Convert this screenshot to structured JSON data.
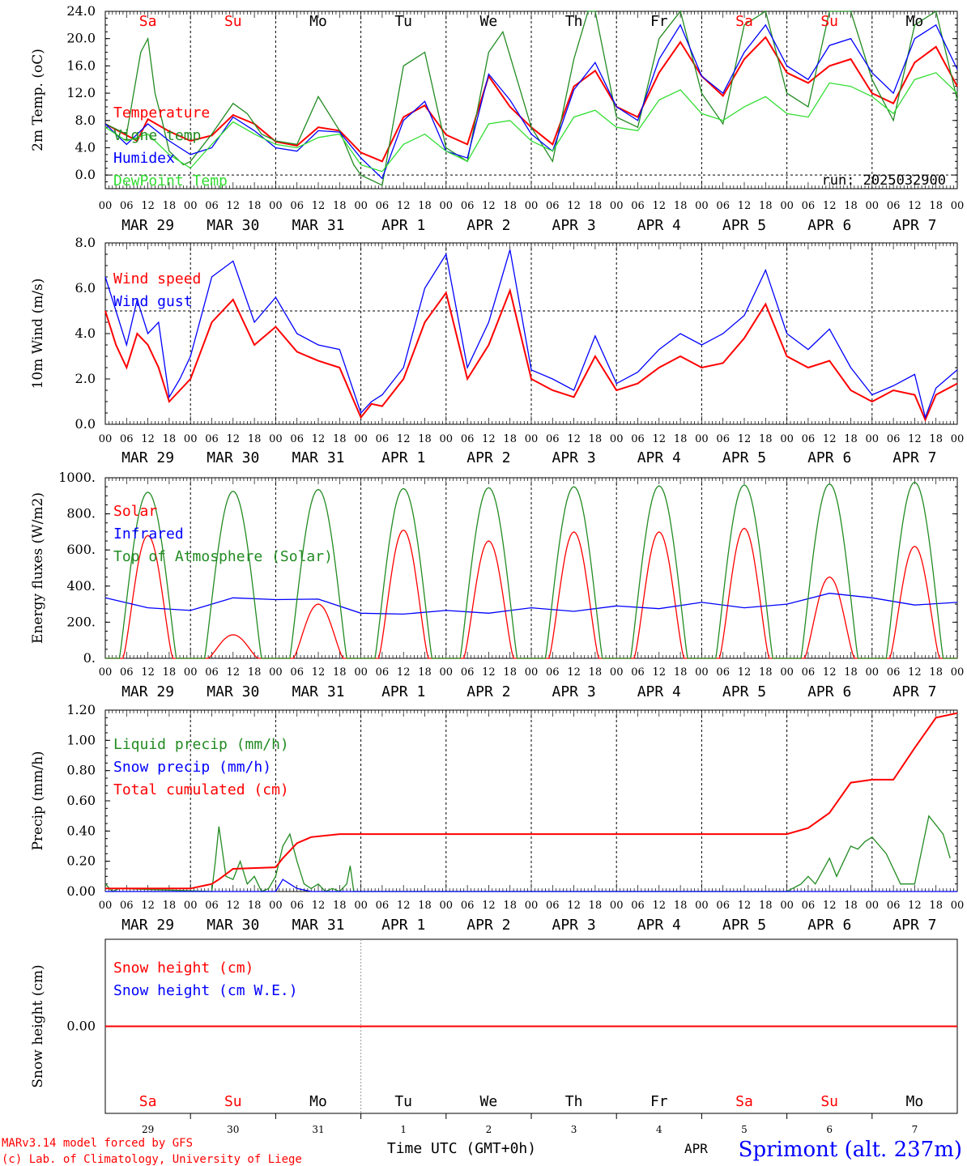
{
  "axis": {
    "hours": [
      "00",
      "06",
      "12",
      "18"
    ],
    "days": [
      {
        "dlabel": "MAR 29",
        "abbr": "Sa",
        "num": "29",
        "red": true
      },
      {
        "dlabel": "MAR 30",
        "abbr": "Su",
        "num": "30",
        "red": true
      },
      {
        "dlabel": "MAR 31",
        "abbr": "Mo",
        "num": "31",
        "red": false
      },
      {
        "dlabel": "APR  1",
        "abbr": "Tu",
        "num": "1",
        "red": false
      },
      {
        "dlabel": "APR  2",
        "abbr": "We",
        "num": "2",
        "red": false
      },
      {
        "dlabel": "APR  3",
        "abbr": "Th",
        "num": "3",
        "red": false
      },
      {
        "dlabel": "APR  4",
        "abbr": "Fr",
        "num": "4",
        "red": false
      },
      {
        "dlabel": "APR  5",
        "abbr": "Sa",
        "num": "5",
        "red": true
      },
      {
        "dlabel": "APR  6",
        "abbr": "Su",
        "num": "6",
        "red": true
      },
      {
        "dlabel": "APR  7",
        "abbr": "Mo",
        "num": "7",
        "red": false
      }
    ],
    "last_hour": "00",
    "xlabel": "Time UTC (GMT+0h)",
    "apr_fragment": "APR"
  },
  "footer": {
    "model_line": "MARv3.14 model forced by GFS",
    "lab_line": "(c) Lab. of Climatology, University of Liege",
    "station": "Sprimont (alt. 237m)"
  },
  "colors": {
    "red": "#ff0000",
    "green": "#228b22",
    "blue": "#0000ff",
    "lightgreen": "#33dd33"
  },
  "chart_data": [
    {
      "type": "line",
      "ylabel": "2m Temp. (oC)",
      "ylim": [
        -2,
        24
      ],
      "yticks": [
        "0.0",
        "4.0",
        "8.0",
        "12.0",
        "16.0",
        "20.0",
        "24.0"
      ],
      "yvals": [
        0,
        4,
        8,
        12,
        16,
        20,
        24
      ],
      "run_label": "run: 2025032900",
      "series": [
        {
          "name": "Temperature",
          "color": "red",
          "x": [
            0,
            9,
            12,
            18,
            24,
            30,
            36,
            42,
            48,
            54,
            60,
            66,
            72,
            78,
            84,
            90,
            96,
            102,
            108,
            114,
            120,
            126,
            132,
            138,
            144,
            150,
            156,
            162,
            168,
            174,
            180,
            186,
            192,
            198,
            204,
            210,
            216,
            222,
            228,
            234,
            240
          ],
          "values": [
            7.5,
            5.0,
            8.2,
            6.4,
            5.0,
            5.8,
            8.8,
            7.5,
            4.9,
            4.3,
            7.0,
            6.5,
            3.3,
            2.0,
            8.5,
            10.2,
            5.9,
            4.5,
            14.5,
            10.0,
            7.0,
            4.5,
            13.0,
            15.3,
            10.0,
            8.5,
            15.0,
            19.5,
            14.5,
            11.6,
            17.0,
            20.2,
            15.0,
            13.5,
            16.0,
            17.0,
            12.0,
            10.5,
            16.5,
            18.8,
            13.0
          ]
        },
        {
          "name": "Vigne temp",
          "color": "green",
          "x": [
            0,
            6,
            10,
            12,
            14,
            16,
            18,
            22,
            24,
            30,
            36,
            40,
            44,
            48,
            54,
            60,
            66,
            70,
            72,
            78,
            84,
            90,
            96,
            102,
            108,
            112,
            114,
            120,
            126,
            132,
            136,
            138,
            144,
            150,
            156,
            162,
            168,
            174,
            180,
            186,
            192,
            198,
            204,
            210,
            216,
            222,
            228,
            234,
            240
          ],
          "values": [
            7.5,
            6.0,
            18.0,
            20.0,
            12.0,
            8.0,
            3.5,
            1.5,
            2.0,
            6.0,
            10.5,
            9.0,
            6.0,
            5.0,
            4.5,
            11.5,
            6.5,
            1.5,
            0,
            -1.5,
            16.0,
            18.0,
            4.0,
            2.0,
            18.0,
            21.0,
            17.5,
            7.0,
            2.0,
            17.0,
            26.0,
            24.0,
            8.5,
            7.0,
            20.0,
            27.0,
            12.0,
            7.5,
            22.0,
            26.0,
            12.0,
            10.0,
            24.0,
            25.0,
            14.0,
            8.0,
            22.0,
            26.0,
            11.0
          ]
        },
        {
          "name": "Humidex",
          "color": "blue",
          "x": [
            0,
            6,
            12,
            18,
            24,
            30,
            36,
            42,
            48,
            54,
            60,
            66,
            72,
            78,
            84,
            90,
            96,
            102,
            108,
            114,
            120,
            126,
            132,
            138,
            144,
            150,
            156,
            162,
            168,
            174,
            180,
            186,
            192,
            198,
            204,
            210,
            216,
            222,
            228,
            234,
            240
          ],
          "values": [
            7.5,
            4.5,
            7.5,
            5.0,
            3.0,
            4.0,
            8.5,
            6.5,
            4.0,
            3.5,
            6.5,
            6.3,
            2.5,
            -0.5,
            8.0,
            10.8,
            3.5,
            2.5,
            14.8,
            11.0,
            6.0,
            3.5,
            12.5,
            16.5,
            10.0,
            8.0,
            17.0,
            22.0,
            14.5,
            12.0,
            18.0,
            22.0,
            16.0,
            14.0,
            19.0,
            20.0,
            15.0,
            12.0,
            20.0,
            22.0,
            15.5
          ]
        },
        {
          "name": "DewPoint Temp",
          "color": "lightgreen",
          "x": [
            0,
            6,
            12,
            18,
            24,
            30,
            36,
            42,
            48,
            54,
            60,
            66,
            72,
            78,
            84,
            90,
            96,
            102,
            108,
            114,
            120,
            126,
            132,
            138,
            144,
            150,
            156,
            162,
            168,
            174,
            180,
            186,
            192,
            198,
            204,
            210,
            216,
            222,
            228,
            234,
            240
          ],
          "values": [
            7.0,
            5.0,
            6.0,
            3.0,
            1.0,
            4.5,
            7.8,
            6.0,
            4.5,
            4.0,
            5.5,
            6.0,
            1.5,
            0.5,
            4.5,
            6.0,
            3.5,
            2.0,
            7.5,
            8.0,
            5.0,
            3.5,
            8.5,
            9.5,
            7.0,
            6.5,
            11.0,
            12.5,
            9.0,
            8.0,
            10.0,
            11.5,
            9.0,
            8.5,
            13.5,
            13.0,
            11.5,
            9.0,
            14.0,
            15.0,
            12.0
          ]
        }
      ]
    },
    {
      "type": "line",
      "ylabel": "10m Wind (m/s)",
      "ylim": [
        0,
        8
      ],
      "yticks": [
        "0.0",
        "2.0",
        "4.0",
        "6.0",
        "8.0"
      ],
      "yvals": [
        0,
        2,
        4,
        6,
        8
      ],
      "refline": 5,
      "series": [
        {
          "name": "Wind speed",
          "color": "red",
          "x": [
            0,
            3,
            6,
            9,
            12,
            15,
            18,
            21,
            24,
            30,
            36,
            42,
            48,
            54,
            60,
            66,
            72,
            75,
            78,
            84,
            90,
            96,
            102,
            108,
            114,
            120,
            126,
            132,
            138,
            144,
            150,
            156,
            162,
            168,
            174,
            180,
            186,
            192,
            198,
            204,
            210,
            216,
            222,
            228,
            231,
            234,
            240
          ],
          "values": [
            5.0,
            3.5,
            2.5,
            4.0,
            3.5,
            2.5,
            1.0,
            1.5,
            2.0,
            4.5,
            5.5,
            3.5,
            4.3,
            3.2,
            2.8,
            2.5,
            0.3,
            0.9,
            0.8,
            2.0,
            4.5,
            5.8,
            2.0,
            3.5,
            5.9,
            2.0,
            1.5,
            1.2,
            3.0,
            1.5,
            1.8,
            2.5,
            3.0,
            2.5,
            2.7,
            3.8,
            5.3,
            3.0,
            2.5,
            2.8,
            1.5,
            1.0,
            1.5,
            1.3,
            0.2,
            1.3,
            1.8
          ]
        },
        {
          "name": "Wind gust",
          "color": "blue",
          "x": [
            0,
            3,
            6,
            9,
            12,
            15,
            18,
            21,
            24,
            30,
            36,
            42,
            48,
            54,
            60,
            66,
            72,
            75,
            78,
            84,
            90,
            96,
            102,
            108,
            114,
            120,
            126,
            132,
            138,
            144,
            150,
            156,
            162,
            168,
            174,
            180,
            186,
            192,
            198,
            204,
            210,
            216,
            222,
            228,
            231,
            234,
            240
          ],
          "values": [
            6.5,
            5.0,
            3.5,
            5.5,
            4.0,
            4.5,
            1.2,
            2.0,
            3.0,
            6.5,
            7.2,
            4.5,
            5.6,
            4.0,
            3.5,
            3.3,
            0.5,
            1.0,
            1.3,
            2.5,
            6.0,
            7.5,
            2.5,
            4.5,
            7.7,
            2.4,
            2.0,
            1.5,
            3.9,
            1.8,
            2.3,
            3.3,
            4.0,
            3.5,
            4.0,
            4.8,
            6.8,
            4.0,
            3.3,
            4.2,
            2.5,
            1.3,
            1.7,
            2.2,
            0.3,
            1.6,
            2.4
          ]
        }
      ]
    },
    {
      "type": "line",
      "ylabel": "Energy fluxes (W/m2)",
      "ylim": [
        0,
        1000
      ],
      "yticks": [
        "0.",
        "200.",
        "400.",
        "600.",
        "800.",
        "1000."
      ],
      "yvals": [
        0,
        200,
        400,
        600,
        800,
        1000
      ],
      "series": [
        {
          "name": "Solar",
          "color": "red",
          "peaks": [
            680,
            130,
            300,
            710,
            650,
            700,
            700,
            720,
            450,
            620
          ]
        },
        {
          "name": "Infrared",
          "color": "blue",
          "x": [
            0,
            12,
            24,
            36,
            48,
            60,
            72,
            84,
            96,
            108,
            120,
            132,
            144,
            156,
            168,
            180,
            192,
            204,
            216,
            228,
            240
          ],
          "values": [
            335,
            280,
            265,
            335,
            325,
            328,
            250,
            245,
            265,
            250,
            280,
            260,
            290,
            275,
            310,
            280,
            300,
            360,
            335,
            295,
            310
          ]
        },
        {
          "name": "Top of Atmosphere (Solar)",
          "color": "green",
          "peaks": [
            920,
            925,
            935,
            940,
            945,
            950,
            955,
            960,
            965,
            975
          ]
        }
      ]
    },
    {
      "type": "line",
      "ylabel": "Precip (mm/h)",
      "ylim": [
        0,
        1.2
      ],
      "yticks": [
        "0.00",
        "0.20",
        "0.40",
        "0.60",
        "0.80",
        "1.00",
        "1.20"
      ],
      "yvals": [
        0,
        0.2,
        0.4,
        0.6,
        0.8,
        1.0,
        1.2
      ],
      "series": [
        {
          "name": "Liquid precip (mm/h)",
          "color": "green",
          "x": [
            0,
            2,
            4,
            30,
            31,
            32,
            34,
            36,
            38,
            40,
            42,
            44,
            46,
            48,
            50,
            52,
            54,
            56,
            58,
            60,
            62,
            64,
            66,
            68,
            69,
            70,
            72,
            192,
            196,
            198,
            200,
            204,
            206,
            208,
            210,
            212,
            214,
            216,
            220,
            224,
            228,
            232,
            236,
            238
          ],
          "values": [
            0.05,
            0,
            0.02,
            0,
            0.2,
            0.43,
            0.1,
            0.08,
            0.2,
            0.05,
            0.1,
            0,
            0.02,
            0.1,
            0.3,
            0.38,
            0.2,
            0.05,
            0.02,
            0.05,
            0,
            0.02,
            0,
            0.05,
            0.17,
            0,
            0,
            0,
            0.05,
            0.1,
            0.05,
            0.22,
            0.1,
            0.2,
            0.3,
            0.28,
            0.33,
            0.36,
            0.25,
            0.05,
            0.05,
            0.5,
            0.38,
            0.22
          ]
        },
        {
          "name": "Snow precip (mm/h)",
          "color": "blue",
          "x": [
            0,
            48,
            50,
            52,
            54,
            58,
            240
          ],
          "values": [
            0,
            0,
            0.08,
            0.05,
            0.02,
            0,
            0
          ]
        },
        {
          "name": "Total cumulated (cm)",
          "color": "red",
          "x": [
            0,
            24,
            30,
            32,
            36,
            48,
            50,
            54,
            58,
            66,
            72,
            192,
            198,
            204,
            210,
            216,
            222,
            228,
            234,
            240
          ],
          "values": [
            0.02,
            0.02,
            0.05,
            0.08,
            0.15,
            0.16,
            0.22,
            0.32,
            0.36,
            0.38,
            0.38,
            0.38,
            0.42,
            0.52,
            0.72,
            0.74,
            0.74,
            0.95,
            1.15,
            1.18
          ]
        }
      ]
    },
    {
      "type": "line",
      "ylabel": "Snow height (cm)",
      "ylim": [
        -1,
        1
      ],
      "yticks": [
        "0.00"
      ],
      "yvals": [
        0
      ],
      "series": [
        {
          "name": "Snow height (cm)",
          "color": "red",
          "x": [
            0,
            240
          ],
          "values": [
            0,
            0
          ]
        },
        {
          "name": "Snow height (cm W.E.)",
          "color": "blue",
          "x": [],
          "values": []
        }
      ]
    }
  ]
}
